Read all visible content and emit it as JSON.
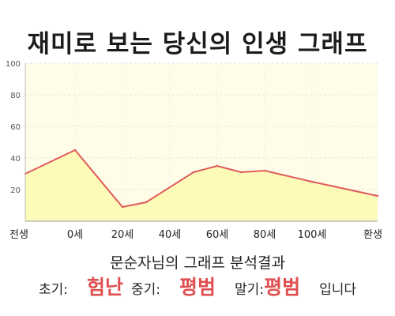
{
  "title": "재미로 보는 당신의 인생 그래프",
  "summary": {
    "heading": "문순자님의 그래프 분석결과",
    "early_label": "초기:",
    "early_value": "험난",
    "middle_label": "중기:",
    "middle_value": "평범",
    "late_label": "말기:",
    "late_value": "평범",
    "suffix": "입니다"
  },
  "colors": {
    "line": "#e05a5a",
    "fill": "#fdfbb8",
    "plot_bg": "#fffde8",
    "accent_text": "#e05050"
  },
  "chart_data": {
    "type": "area",
    "title": "재미로 보는 당신의 인생 그래프",
    "xlabel": "",
    "ylabel": "",
    "ylim": [
      0,
      100
    ],
    "yticks": [
      20,
      40,
      60,
      80,
      100
    ],
    "x_tick_labels": [
      "전생",
      "0세",
      "20세",
      "40세",
      "60세",
      "80세",
      "100세",
      "환생"
    ],
    "grid": true,
    "series": [
      {
        "points": [
          {
            "x": "전생",
            "y": 30
          },
          {
            "x": "0세",
            "y": 45
          },
          {
            "x": "20세",
            "y": 9
          },
          {
            "x": "30세",
            "y": 12
          },
          {
            "x": "50세",
            "y": 31
          },
          {
            "x": "60세",
            "y": 35
          },
          {
            "x": "70세",
            "y": 31
          },
          {
            "x": "80세",
            "y": 32
          },
          {
            "x": "100세",
            "y": 25
          },
          {
            "x": "환생",
            "y": 16
          }
        ]
      }
    ]
  }
}
